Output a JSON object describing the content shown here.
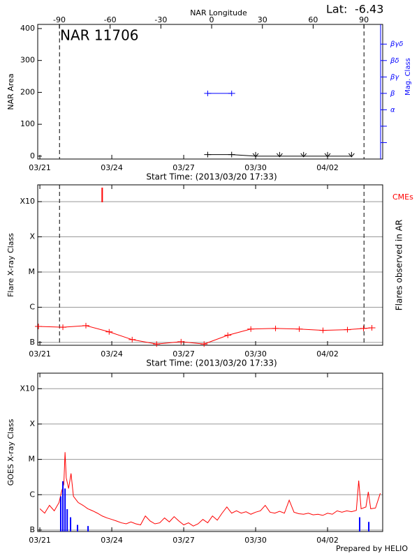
{
  "chart_data": [
    {
      "type": "line",
      "title": "NAR 11706",
      "x_label": "Start Time: (2013/03/20 17:33)",
      "x2_label": "NAR Longitude",
      "y_label": "NAR Area",
      "y2_label": "Mag. Class",
      "lat_label": "Lat:",
      "lat_value": -6.43,
      "xlim": [
        -0.09,
        14.3
      ],
      "xticks": [
        {
          "value": 0,
          "label": "03/21"
        },
        {
          "value": 3,
          "label": "03/24"
        },
        {
          "value": 6,
          "label": "03/27"
        },
        {
          "value": 9,
          "label": "03/30"
        },
        {
          "value": 12,
          "label": "04/02"
        }
      ],
      "x2lim": [
        -102.8,
        101.1
      ],
      "x2ticks": [
        -90,
        -60,
        -30,
        0,
        30,
        60,
        90
      ],
      "ylim": [
        -9,
        413
      ],
      "yticks": [
        0,
        100,
        200,
        300,
        400
      ],
      "y2lim": [
        0,
        8.2
      ],
      "y2ticks": [
        {
          "value": 1,
          "label": null
        },
        {
          "value": 2,
          "label": null
        },
        {
          "value": 3,
          "label": "α"
        },
        {
          "value": 4,
          "label": "β"
        },
        {
          "value": 5,
          "label": "βγ"
        },
        {
          "value": 6,
          "label": "βδ"
        },
        {
          "value": 7,
          "label": "βγδ"
        }
      ],
      "vlines": [
        0.82,
        13.52
      ],
      "series": [
        {
          "color": "#000000",
          "marker": "+",
          "x": [
            7,
            8,
            9,
            10,
            11,
            12,
            13
          ],
          "values": [
            5,
            5,
            0,
            0,
            0,
            0,
            0
          ]
        },
        {
          "color": "#0000ff",
          "marker": "+",
          "axis": "y2",
          "x": [
            7,
            8
          ],
          "values": [
            4,
            4
          ]
        }
      ]
    },
    {
      "type": "line",
      "x_label": "Start Time: (2013/03/20 17:33)",
      "y_label": "Flare X-ray Class",
      "y2_label": "Flares observed in AR",
      "annotation": "CMEs",
      "annotation_color": "#ff0000",
      "log_scale": true,
      "grid": true,
      "xlim": [
        -0.09,
        14.3
      ],
      "xticks": [
        {
          "value": 0,
          "label": "03/21"
        },
        {
          "value": 3,
          "label": "03/24"
        },
        {
          "value": 6,
          "label": "03/27"
        },
        {
          "value": 9,
          "label": "03/30"
        },
        {
          "value": 12,
          "label": "04/02"
        }
      ],
      "ylim": [
        8.3e-08,
        0.003
      ],
      "yticks": [
        {
          "value": 1e-07,
          "label": "B"
        },
        {
          "value": 1e-06,
          "label": "C"
        },
        {
          "value": 1e-05,
          "label": "M"
        },
        {
          "value": 0.0001,
          "label": "X"
        },
        {
          "value": 0.001,
          "label": "X10"
        }
      ],
      "vlines": [
        0.82,
        13.52
      ],
      "cmes": [
        2.6
      ],
      "series": [
        {
          "color": "#ff0000",
          "marker": "+",
          "x": [
            -0.06,
            0.96,
            1.92,
            2.89,
            3.85,
            4.87,
            5.89,
            6.85,
            7.84,
            8.8,
            9.83,
            10.82,
            11.81,
            12.83,
            13.5,
            13.85
          ],
          "values": [
            2.85e-07,
            2.7e-07,
            3e-07,
            2e-07,
            1.2e-07,
            9e-08,
            1.05e-07,
            9e-08,
            1.6e-07,
            2.4e-07,
            2.5e-07,
            2.4e-07,
            2.2e-07,
            2.3e-07,
            2.5e-07,
            2.6e-07
          ]
        }
      ]
    },
    {
      "type": "line",
      "y_label": "GOES X-ray Class",
      "log_scale": true,
      "grid": true,
      "xlim": [
        -0.09,
        14.3
      ],
      "xticks": [
        {
          "value": 0,
          "label": "03/21"
        },
        {
          "value": 3,
          "label": "03/24"
        },
        {
          "value": 6,
          "label": "03/27"
        },
        {
          "value": 9,
          "label": "03/30"
        },
        {
          "value": 12,
          "label": "04/02"
        }
      ],
      "ylim": [
        9.1e-08,
        0.00275
      ],
      "yticks": [
        {
          "value": 1e-07,
          "label": "B"
        },
        {
          "value": 1e-06,
          "label": "C"
        },
        {
          "value": 1e-05,
          "label": "M"
        },
        {
          "value": 0.0001,
          "label": "X"
        },
        {
          "value": 0.001,
          "label": "X10"
        }
      ],
      "series": [
        {
          "color": "#ff0000",
          "x": [
            0,
            0.2,
            0.4,
            0.6,
            0.8,
            0.9,
            1,
            1.05,
            1.1,
            1.2,
            1.3,
            1.4,
            1.6,
            1.8,
            2,
            2.2,
            2.4,
            2.6,
            2.8,
            3,
            3.2,
            3.4,
            3.6,
            3.8,
            4,
            4.2,
            4.4,
            4.6,
            4.8,
            5,
            5.2,
            5.4,
            5.6,
            5.8,
            6,
            6.2,
            6.4,
            6.6,
            6.8,
            7,
            7.2,
            7.4,
            7.6,
            7.8,
            8,
            8.2,
            8.4,
            8.6,
            8.8,
            9,
            9.2,
            9.4,
            9.6,
            9.8,
            10,
            10.2,
            10.4,
            10.6,
            10.8,
            11,
            11.2,
            11.4,
            11.6,
            11.8,
            12,
            12.2,
            12.4,
            12.6,
            12.8,
            13,
            13.2,
            13.3,
            13.4,
            13.6,
            13.7,
            13.8,
            14,
            14.2
          ],
          "values": [
            4e-07,
            3e-07,
            5e-07,
            3.5e-07,
            6e-07,
            1.2e-06,
            2e-06,
            1.6e-05,
            3e-06,
            1.5e-06,
            4e-06,
            9e-07,
            6e-07,
            5e-07,
            4e-07,
            3.5e-07,
            3e-07,
            2.5e-07,
            2.2e-07,
            2e-07,
            1.8e-07,
            1.6e-07,
            1.5e-07,
            1.7e-07,
            1.5e-07,
            1.4e-07,
            2.5e-07,
            1.8e-07,
            1.5e-07,
            1.6e-07,
            2.2e-07,
            1.7e-07,
            2.4e-07,
            1.8e-07,
            1.4e-07,
            1.6e-07,
            1.3e-07,
            1.5e-07,
            2e-07,
            1.6e-07,
            2.5e-07,
            1.9e-07,
            3e-07,
            4.5e-07,
            3e-07,
            3.5e-07,
            3e-07,
            3.3e-07,
            2.8e-07,
            3.2e-07,
            3.5e-07,
            5e-07,
            3.2e-07,
            3e-07,
            3.4e-07,
            3e-07,
            7e-07,
            3.2e-07,
            2.9e-07,
            2.8e-07,
            3e-07,
            2.7e-07,
            2.8e-07,
            2.6e-07,
            3e-07,
            2.8e-07,
            3.5e-07,
            3.2e-07,
            3.5e-07,
            3.3e-07,
            3.6e-07,
            2.5e-06,
            4e-07,
            4.5e-07,
            1.2e-06,
            4e-07,
            4.2e-07,
            1.1e-06
          ]
        },
        {
          "color": "#0000ff",
          "kind": "bar",
          "x": [
            0.87,
            0.96,
            1.05,
            1.14,
            1.28,
            1.57,
            2.01,
            13.34,
            13.72
          ],
          "values": [
            9e-07,
            2.4e-06,
            1.5e-06,
            3.9e-07,
            2.3e-07,
            1.4e-07,
            1.3e-07,
            2.3e-07,
            1.7e-07
          ]
        }
      ]
    }
  ],
  "footer": "Prepared by HELIO"
}
